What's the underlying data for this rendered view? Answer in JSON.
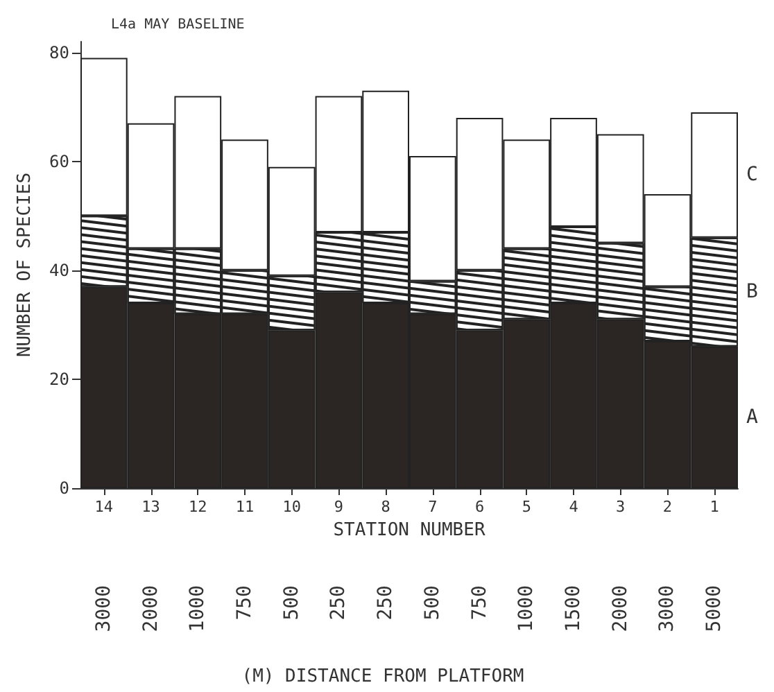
{
  "chart_data": {
    "type": "bar",
    "title": "L4a MAY BASELINE",
    "xlabel": "STATION NUMBER",
    "ylabel": "NUMBER OF SPECIES",
    "stacked": true,
    "categories": [
      "14",
      "13",
      "12",
      "11",
      "10",
      "9",
      "8",
      "7",
      "6",
      "5",
      "4",
      "3",
      "2",
      "1"
    ],
    "series": [
      {
        "name": "A",
        "color": "#2b2623",
        "values": [
          37,
          34,
          32,
          32,
          29,
          36,
          34,
          32,
          29,
          31,
          34,
          31,
          27,
          26
        ]
      },
      {
        "name": "B",
        "color": "#ffffff",
        "values": [
          13,
          10,
          12,
          8,
          10,
          11,
          13,
          6,
          11,
          13,
          14,
          14,
          10,
          20
        ]
      },
      {
        "name": "C",
        "color": "#ffffff",
        "values": [
          29,
          23,
          28,
          24,
          20,
          25,
          26,
          23,
          28,
          20,
          20,
          20,
          17,
          23
        ]
      }
    ],
    "ylim": [
      0,
      82
    ],
    "yticks": [
      0,
      20,
      40,
      60,
      80
    ],
    "grid": false,
    "legend": false,
    "annotations": [
      "3000",
      "2000",
      "1000",
      "750",
      "500",
      "250",
      "250",
      "500",
      "750",
      "1000",
      "1500",
      "2000",
      "3000",
      "5000",
      "(M) DISTANCE FROM PLATFORM"
    ]
  }
}
